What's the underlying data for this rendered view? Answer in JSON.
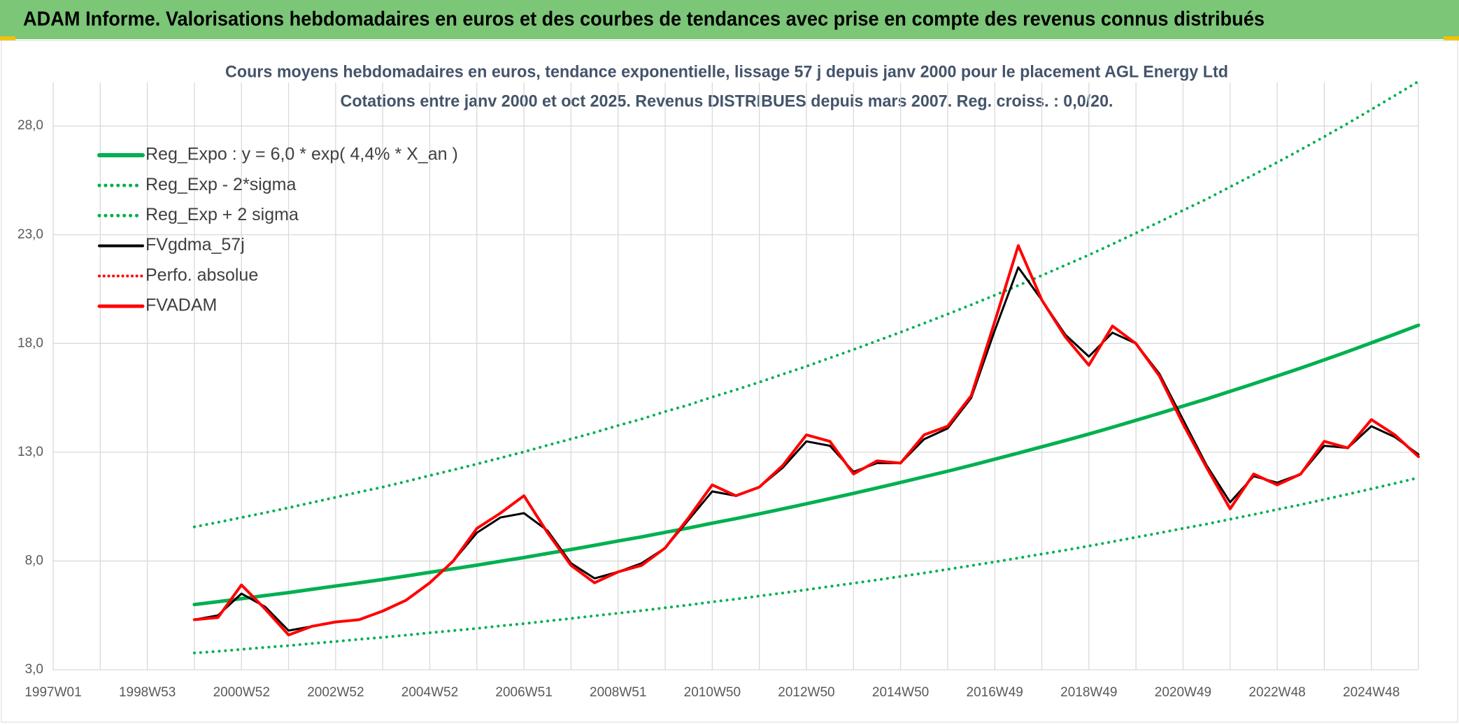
{
  "chart_data": {
    "type": "line",
    "title": "ADAM Informe. Valorisations hebdomadaires en euros et des courbes de tendances avec prise en compte des revenus connus distribués",
    "subtitle": [
      "Cours moyens hebdomadaires en euros, tendance exponentielle, lissage 57 j depuis janv 2000 pour le placement AGL Energy Ltd",
      "Cotations entre janv 2000 et oct 2025. Revenus DISTRIBUES depuis mars 2007. Reg. croiss. : 0,0/20."
    ],
    "categories": [
      "1997W01",
      null,
      null,
      null,
      "1998W53",
      null,
      null,
      null,
      "2000W52",
      null,
      null,
      null,
      "2002W52",
      null,
      null,
      null,
      "2004W52",
      null,
      null,
      null,
      "2006W51",
      null,
      null,
      null,
      "2008W51",
      null,
      null,
      null,
      "2010W50",
      null,
      null,
      null,
      "2012W50",
      null,
      null,
      null,
      "2014W50",
      null,
      null,
      null,
      "2016W49",
      null,
      null,
      null,
      "2018W49",
      null,
      null,
      null,
      "2020W49",
      null,
      null,
      null,
      "2022W48",
      null,
      null,
      null,
      "2024W48",
      null,
      null
    ],
    "ylim": [
      3,
      30
    ],
    "yticks": [
      {
        "value": 3,
        "label": "3,0"
      },
      {
        "value": 8,
        "label": "8,0"
      },
      {
        "value": 13,
        "label": "13,0"
      },
      {
        "value": 18,
        "label": "18,0"
      },
      {
        "value": 23,
        "label": "23,0"
      },
      {
        "value": 28,
        "label": "28,0"
      }
    ],
    "grid": true,
    "legend": "upper left",
    "series": [
      {
        "name": "Reg_Expo : y = 6,0 * exp( 4,4% *  X_an )",
        "color": "#00b050",
        "style": "solid",
        "width": 5,
        "values": [
          null,
          null,
          null,
          null,
          null,
          null,
          6.0,
          6.13,
          6.27,
          6.41,
          6.55,
          6.7,
          6.85,
          7.0,
          7.15,
          7.31,
          7.48,
          7.64,
          7.81,
          7.99,
          8.16,
          8.35,
          8.53,
          8.72,
          8.92,
          9.11,
          9.32,
          9.52,
          9.74,
          9.95,
          10.17,
          10.4,
          10.63,
          10.87,
          11.11,
          11.36,
          11.61,
          11.87,
          12.13,
          12.4,
          12.68,
          12.96,
          13.25,
          13.54,
          13.84,
          14.15,
          14.47,
          14.79,
          15.12,
          15.45,
          15.8,
          16.15,
          16.51,
          16.87,
          17.25,
          17.63,
          18.03,
          18.43,
          18.84
        ]
      },
      {
        "name": "Reg_Exp - 2*sigma",
        "color": "#00b050",
        "style": "dotted",
        "width": 4,
        "values": [
          null,
          null,
          null,
          null,
          null,
          null,
          3.77,
          3.85,
          3.94,
          4.03,
          4.11,
          4.21,
          4.3,
          4.4,
          4.49,
          4.59,
          4.7,
          4.8,
          4.9,
          5.02,
          5.12,
          5.24,
          5.36,
          5.48,
          5.6,
          5.72,
          5.85,
          5.98,
          6.12,
          6.25,
          6.39,
          6.53,
          6.68,
          6.83,
          6.98,
          7.13,
          7.29,
          7.45,
          7.62,
          7.79,
          7.96,
          8.14,
          8.32,
          8.5,
          8.69,
          8.89,
          9.09,
          9.29,
          9.5,
          9.7,
          9.92,
          10.14,
          10.37,
          10.59,
          10.83,
          11.07,
          11.32,
          11.57,
          11.83
        ]
      },
      {
        "name": "Reg_Exp + 2 sigma",
        "color": "#00b050",
        "style": "dotted",
        "width": 4,
        "values": [
          null,
          null,
          null,
          null,
          null,
          null,
          9.57,
          9.78,
          10.0,
          10.22,
          10.45,
          10.69,
          10.93,
          11.17,
          11.4,
          11.66,
          11.93,
          12.19,
          12.46,
          12.74,
          13.02,
          13.32,
          13.61,
          13.91,
          14.23,
          14.53,
          14.87,
          15.18,
          15.54,
          15.87,
          16.22,
          16.59,
          16.95,
          17.34,
          17.72,
          18.12,
          18.52,
          18.93,
          19.35,
          19.78,
          20.22,
          20.67,
          21.13,
          21.6,
          22.07,
          22.57,
          23.08,
          23.59,
          24.12,
          24.64,
          25.2,
          25.76,
          26.33,
          26.91,
          27.51,
          28.12,
          28.76,
          29.4,
          30.05
        ]
      },
      {
        "name": "FVgdma_57j",
        "color": "#000000",
        "style": "solid",
        "width": 3,
        "values": [
          null,
          null,
          null,
          null,
          null,
          null,
          5.3,
          5.5,
          6.5,
          5.9,
          4.8,
          5.0,
          5.2,
          5.3,
          5.7,
          6.2,
          7.0,
          8.0,
          9.3,
          10.0,
          10.2,
          9.4,
          7.9,
          7.2,
          7.5,
          7.9,
          8.6,
          9.9,
          11.2,
          11.0,
          11.4,
          12.3,
          13.5,
          13.3,
          12.1,
          12.5,
          12.5,
          13.6,
          14.1,
          15.5,
          18.6,
          21.5,
          20.0,
          18.4,
          17.4,
          18.5,
          18.0,
          16.6,
          14.5,
          12.4,
          10.7,
          11.9,
          11.6,
          12.0,
          13.3,
          13.2,
          14.2,
          13.7,
          12.9
        ]
      },
      {
        "name": "Perfo. absolue",
        "color": "#ff0000",
        "style": "dotted",
        "width": 3,
        "values": [
          null,
          null,
          null,
          null,
          null,
          null,
          5.3,
          5.4,
          6.9,
          5.8,
          4.6,
          5.0,
          5.2,
          5.3,
          5.7,
          6.2,
          7.0,
          8.0,
          9.5,
          10.2,
          11.0,
          9.3,
          7.8,
          7.0,
          7.5,
          7.8,
          8.6,
          10.0,
          11.5,
          11.0,
          11.4,
          12.4,
          13.8,
          13.5,
          12.0,
          12.6,
          12.5,
          13.8,
          14.2,
          15.6,
          19.0,
          22.5,
          20.0,
          18.3,
          17.0,
          18.8,
          18.0,
          16.5,
          14.3,
          12.3,
          10.4,
          12.0,
          11.5,
          12.0,
          13.5,
          13.2,
          14.5,
          13.8,
          12.8
        ]
      },
      {
        "name": "FVADAM",
        "color": "#ff0000",
        "style": "solid",
        "width": 4,
        "values": [
          null,
          null,
          null,
          null,
          null,
          null,
          5.3,
          5.4,
          6.9,
          5.8,
          4.6,
          5.0,
          5.2,
          5.3,
          5.7,
          6.2,
          7.0,
          8.0,
          9.5,
          10.2,
          11.0,
          9.3,
          7.8,
          7.0,
          7.5,
          7.8,
          8.6,
          10.0,
          11.5,
          11.0,
          11.4,
          12.4,
          13.8,
          13.5,
          12.0,
          12.6,
          12.5,
          13.8,
          14.2,
          15.6,
          19.0,
          22.5,
          20.0,
          18.3,
          17.0,
          18.8,
          18.0,
          16.5,
          14.3,
          12.3,
          10.4,
          12.0,
          11.5,
          12.0,
          13.5,
          13.2,
          14.5,
          13.8,
          12.8
        ]
      }
    ]
  }
}
